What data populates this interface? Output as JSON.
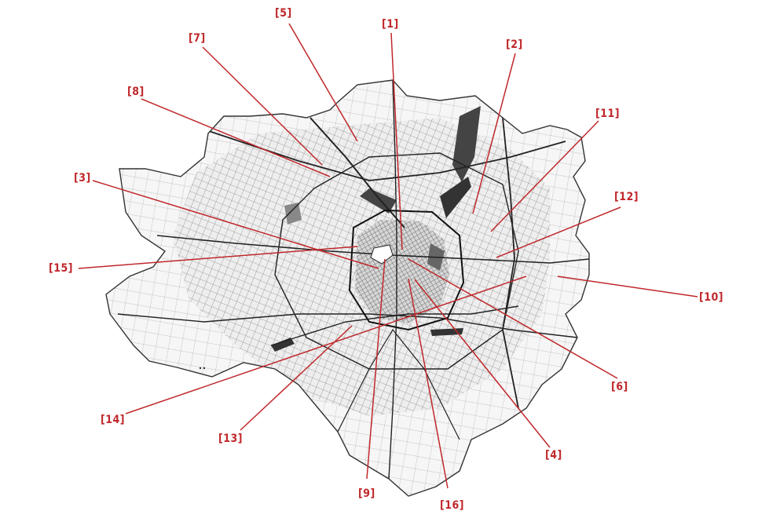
{
  "map": {
    "accent_color": "#c0282b",
    "labels": [
      {
        "id": "1",
        "text": "[1]"
      },
      {
        "id": "2",
        "text": "[2]"
      },
      {
        "id": "3",
        "text": "[3]"
      },
      {
        "id": "4",
        "text": "[4]"
      },
      {
        "id": "5",
        "text": "[5]"
      },
      {
        "id": "6",
        "text": "[6]"
      },
      {
        "id": "7",
        "text": "[7]"
      },
      {
        "id": "8",
        "text": "[8]"
      },
      {
        "id": "9",
        "text": "[9]"
      },
      {
        "id": "10",
        "text": "[10]"
      },
      {
        "id": "11",
        "text": "[11]"
      },
      {
        "id": "12",
        "text": "[12]"
      },
      {
        "id": "13",
        "text": "[13]"
      },
      {
        "id": "14",
        "text": "[14]"
      },
      {
        "id": "15",
        "text": "[15]"
      },
      {
        "id": "16",
        "text": "[16]"
      }
    ]
  }
}
